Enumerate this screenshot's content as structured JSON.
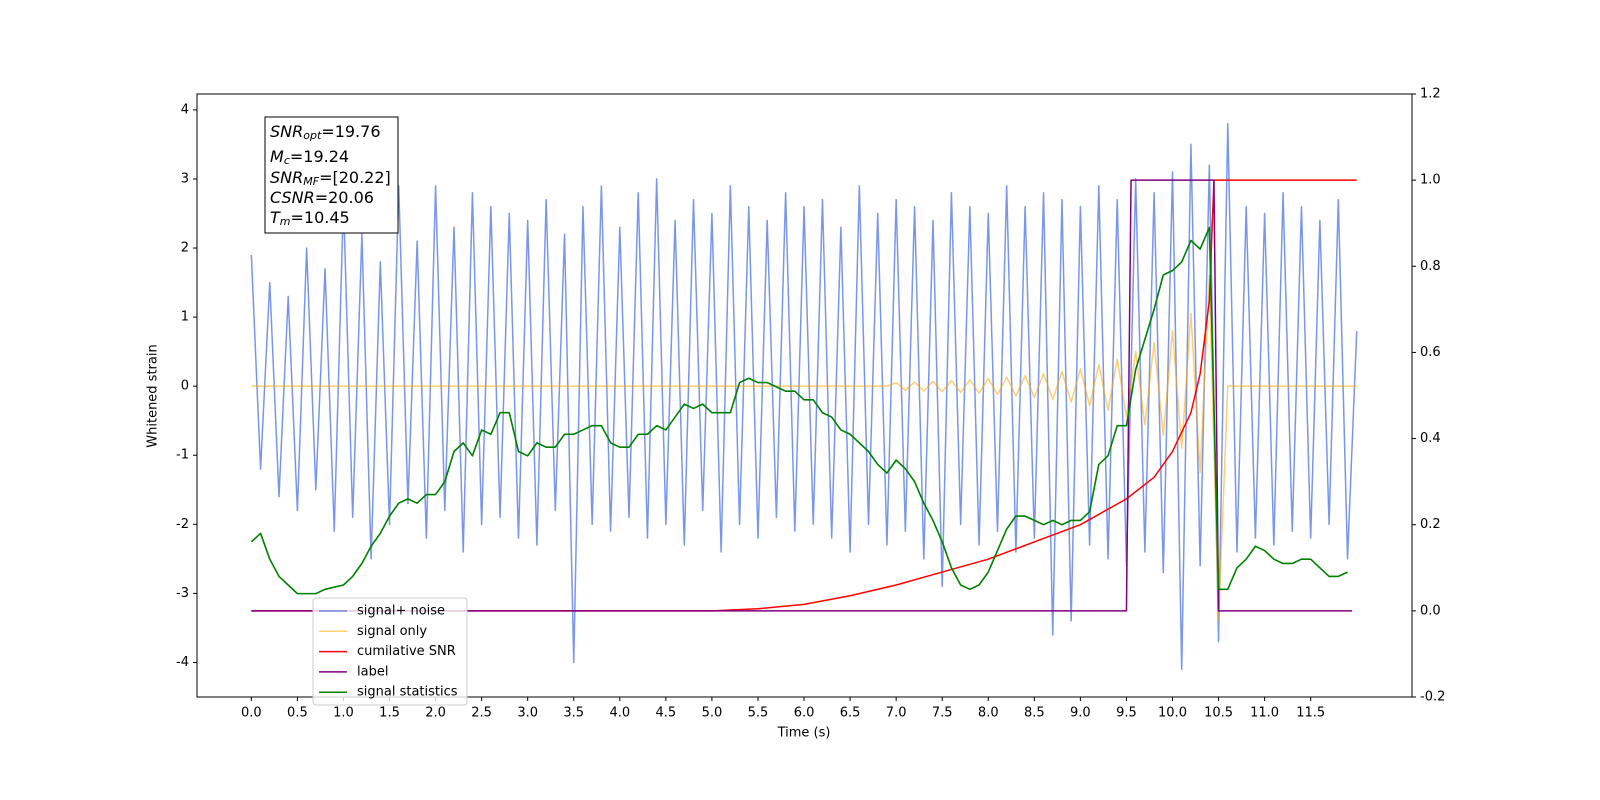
{
  "chart_data": {
    "type": "line",
    "xlabel": "Time (s)",
    "ylabel": "Whitened strain",
    "xlim": [
      -0.59,
      12.6
    ],
    "ylim": [
      -4.5,
      4.23
    ],
    "y2lim": [
      -0.2,
      1.2
    ],
    "xticks": [
      {
        "value": 0,
        "label": "0.0"
      },
      0.5,
      {
        "value": 1,
        "label": "1.0"
      },
      1.5,
      {
        "value": 2,
        "label": "2.0"
      },
      2.5,
      {
        "value": 3,
        "label": "3.0"
      },
      3.5,
      {
        "value": 4,
        "label": "4.0"
      },
      4.5,
      {
        "value": 5,
        "label": "5.0"
      },
      5.5,
      {
        "value": 6,
        "label": "6.0"
      },
      6.5,
      {
        "value": 7,
        "label": "7.0"
      },
      7.5,
      {
        "value": 8,
        "label": "8.0"
      },
      8.5,
      {
        "value": 9,
        "label": "9.0"
      },
      9.5,
      {
        "value": 10,
        "label": "10.0"
      },
      10.5,
      {
        "value": 11,
        "label": "11.0"
      },
      11.5
    ],
    "yticks": [
      -4,
      -3,
      -2,
      -1,
      0,
      1,
      2,
      3,
      4
    ],
    "y2ticks": [
      -0.2,
      {
        "value": 0,
        "label": "0.0"
      },
      0.2,
      0.4,
      0.6,
      0.8,
      {
        "value": 1,
        "label": "1.0"
      },
      1.2
    ],
    "legend": "lower left",
    "annotation": [
      {
        "main": "SNR",
        "sub": "opt",
        "rest": "=19.76"
      },
      {
        "main": "M",
        "sub": "c",
        "rest": "=19.24"
      },
      {
        "main": "SNR",
        "sub": "MF",
        "rest": "=[20.22]"
      },
      {
        "main": "CSNR",
        "sub": null,
        "rest": "=20.06"
      },
      {
        "main": "T",
        "sub": "m",
        "rest": "=10.45"
      }
    ],
    "x": [
      0,
      0.1,
      0.2,
      0.3,
      0.4,
      0.5,
      0.6,
      0.7,
      0.8,
      0.9,
      1,
      1.1,
      1.2,
      1.3,
      1.4,
      1.5,
      1.6,
      1.7,
      1.8,
      1.9,
      2,
      2.1,
      2.2,
      2.3,
      2.4,
      2.5,
      2.6,
      2.7,
      2.8,
      2.9,
      3,
      3.1,
      3.2,
      3.3,
      3.4,
      3.5,
      3.6,
      3.7,
      3.8,
      3.9,
      4,
      4.1,
      4.2,
      4.3,
      4.4,
      4.5,
      4.6,
      4.7,
      4.8,
      4.9,
      5,
      5.1,
      5.2,
      5.3,
      5.4,
      5.5,
      5.6,
      5.7,
      5.8,
      5.9,
      6,
      6.1,
      6.2,
      6.3,
      6.4,
      6.5,
      6.6,
      6.7,
      6.8,
      6.9,
      7,
      7.1,
      7.2,
      7.3,
      7.4,
      7.5,
      7.6,
      7.7,
      7.8,
      7.9,
      8,
      8.1,
      8.2,
      8.3,
      8.4,
      8.5,
      8.6,
      8.7,
      8.8,
      8.9,
      9,
      9.1,
      9.2,
      9.3,
      9.4,
      9.5,
      9.6,
      9.7,
      9.8,
      9.9,
      10,
      10.1,
      10.2,
      10.3,
      10.4,
      10.5,
      10.6,
      10.7,
      10.8,
      10.9,
      11,
      11.1,
      11.2,
      11.3,
      11.4,
      11.5,
      11.6,
      11.7,
      11.8,
      11.9,
      12
    ],
    "series": [
      {
        "name": "signal+ noise",
        "color": "#4169e1",
        "values": [
          1.9,
          -1.2,
          1.5,
          -1.6,
          1.3,
          -1.8,
          2.0,
          -1.5,
          1.7,
          -2.1,
          2.7,
          -1.9,
          2.2,
          -2.5,
          1.8,
          -2.0,
          2.9,
          -1.7,
          2.1,
          -2.2,
          2.9,
          -1.8,
          2.3,
          -2.4,
          2.8,
          -2.0,
          2.6,
          -1.9,
          2.5,
          -2.2,
          2.4,
          -2.3,
          2.7,
          -1.8,
          2.2,
          -4.0,
          2.6,
          -2.0,
          2.9,
          -2.1,
          2.3,
          -1.9,
          2.8,
          -2.2,
          3.0,
          -2.0,
          2.4,
          -2.3,
          2.7,
          -1.8,
          2.5,
          -2.4,
          2.9,
          -2.0,
          2.6,
          -2.2,
          2.4,
          -1.9,
          2.8,
          -2.1,
          2.6,
          -2.0,
          2.7,
          -2.2,
          2.3,
          -2.4,
          2.9,
          -2.0,
          2.5,
          -2.3,
          2.7,
          -2.1,
          2.6,
          -2.5,
          2.4,
          -2.9,
          2.8,
          -2.0,
          2.6,
          -2.3,
          2.5,
          -2.1,
          2.9,
          -2.4,
          2.6,
          -2.2,
          2.8,
          -3.6,
          2.7,
          -3.4,
          2.6,
          -2.3,
          2.9,
          -2.5,
          2.7,
          -2.6,
          3.0,
          -2.4,
          2.8,
          -2.7,
          3.1,
          -4.1,
          3.5,
          -2.6,
          3.2,
          -3.7,
          3.8,
          -2.4,
          2.6,
          -2.2,
          2.5,
          -2.3,
          2.8,
          -2.1,
          2.6,
          -2.2,
          2.4,
          -2.0,
          2.7,
          -2.5,
          0.8
        ]
      },
      {
        "name": "signal only",
        "color": "#ffa500",
        "values": [
          0,
          0,
          0,
          0,
          0,
          0,
          0,
          0,
          0,
          0,
          0,
          0,
          0,
          0,
          0,
          0,
          0,
          0,
          0,
          0,
          0,
          0,
          0,
          0,
          0,
          0,
          0,
          0,
          0,
          0,
          0,
          0,
          0,
          0,
          0,
          0,
          0,
          0,
          0,
          0,
          0,
          0,
          0,
          0,
          0,
          0,
          0,
          0,
          0,
          0,
          0,
          0,
          0,
          0,
          0,
          0,
          0,
          0,
          0,
          0,
          0,
          0,
          0,
          0,
          0,
          0,
          0,
          0,
          0,
          0,
          0.05,
          -0.06,
          0.06,
          -0.07,
          0.07,
          -0.08,
          0.08,
          -0.09,
          0.09,
          -0.1,
          0.11,
          -0.12,
          0.13,
          -0.14,
          0.15,
          -0.16,
          0.18,
          -0.19,
          0.21,
          -0.23,
          0.25,
          -0.28,
          0.31,
          -0.35,
          0.39,
          -0.44,
          0.5,
          -0.56,
          0.63,
          -0.71,
          0.8,
          -0.9,
          1.05,
          -1.25,
          1.6,
          -3.4,
          0,
          0,
          0,
          0,
          0,
          0,
          0,
          0,
          0,
          0,
          0,
          0,
          0,
          0,
          0
        ]
      },
      {
        "name": "cumilative SNR",
        "color": "#ff0000",
        "axis": "y2",
        "x": [
          0,
          5,
          5.5,
          6,
          6.5,
          7,
          7.5,
          8,
          8.5,
          9,
          9.5,
          9.8,
          10,
          10.2,
          10.3,
          10.4,
          10.45,
          12
        ],
        "values": [
          0,
          0,
          0.005,
          0.015,
          0.035,
          0.06,
          0.09,
          0.12,
          0.16,
          0.2,
          0.26,
          0.31,
          0.37,
          0.46,
          0.55,
          0.72,
          1.0,
          1.0
        ]
      },
      {
        "name": "label",
        "color": "#800080",
        "axis": "y2",
        "x": [
          0,
          9.5,
          9.55,
          10.45,
          10.5,
          11.95
        ],
        "values": [
          0,
          0,
          1,
          1,
          0,
          0
        ]
      },
      {
        "name": "signal statistics",
        "color": "#008000",
        "axis": "y2",
        "x": [
          0,
          0.1,
          0.2,
          0.3,
          0.4,
          0.5,
          0.6,
          0.7,
          0.8,
          0.9,
          1,
          1.1,
          1.2,
          1.3,
          1.4,
          1.5,
          1.6,
          1.7,
          1.8,
          1.9,
          2,
          2.1,
          2.2,
          2.3,
          2.4,
          2.5,
          2.6,
          2.7,
          2.8,
          2.9,
          3,
          3.1,
          3.2,
          3.3,
          3.4,
          3.5,
          3.6,
          3.7,
          3.8,
          3.9,
          4,
          4.1,
          4.2,
          4.3,
          4.4,
          4.5,
          4.6,
          4.7,
          4.8,
          4.9,
          5,
          5.1,
          5.2,
          5.3,
          5.4,
          5.5,
          5.6,
          5.7,
          5.8,
          5.9,
          6,
          6.1,
          6.2,
          6.3,
          6.4,
          6.5,
          6.6,
          6.7,
          6.8,
          6.9,
          7,
          7.1,
          7.2,
          7.3,
          7.4,
          7.5,
          7.6,
          7.7,
          7.8,
          7.9,
          8,
          8.1,
          8.2,
          8.3,
          8.4,
          8.5,
          8.6,
          8.7,
          8.8,
          8.9,
          9,
          9.1,
          9.2,
          9.3,
          9.4,
          9.5,
          9.6,
          9.7,
          9.8,
          9.9,
          10,
          10.1,
          10.2,
          10.3,
          10.4,
          10.5,
          10.6,
          10.7,
          10.8,
          10.9,
          11,
          11.1,
          11.2,
          11.3,
          11.4,
          11.5,
          11.6,
          11.7,
          11.8,
          11.9
        ],
        "values": [
          0.16,
          0.18,
          0.12,
          0.08,
          0.06,
          0.04,
          0.04,
          0.04,
          0.05,
          0.055,
          0.06,
          0.08,
          0.11,
          0.15,
          0.18,
          0.22,
          0.25,
          0.26,
          0.25,
          0.27,
          0.27,
          0.3,
          0.37,
          0.39,
          0.36,
          0.42,
          0.41,
          0.46,
          0.46,
          0.37,
          0.36,
          0.39,
          0.38,
          0.38,
          0.41,
          0.41,
          0.42,
          0.43,
          0.43,
          0.39,
          0.38,
          0.38,
          0.41,
          0.41,
          0.43,
          0.42,
          0.45,
          0.48,
          0.47,
          0.48,
          0.46,
          0.46,
          0.46,
          0.53,
          0.54,
          0.53,
          0.53,
          0.52,
          0.51,
          0.51,
          0.49,
          0.49,
          0.46,
          0.45,
          0.42,
          0.41,
          0.39,
          0.37,
          0.34,
          0.32,
          0.35,
          0.33,
          0.3,
          0.25,
          0.21,
          0.16,
          0.1,
          0.06,
          0.05,
          0.06,
          0.09,
          0.14,
          0.19,
          0.22,
          0.22,
          0.21,
          0.2,
          0.21,
          0.2,
          0.21,
          0.21,
          0.23,
          0.34,
          0.36,
          0.43,
          0.43,
          0.56,
          0.63,
          0.7,
          0.78,
          0.79,
          0.81,
          0.86,
          0.84,
          0.89,
          0.05,
          0.05,
          0.1,
          0.12,
          0.15,
          0.14,
          0.12,
          0.11,
          0.11,
          0.12,
          0.12,
          0.1,
          0.08,
          0.08,
          0.09
        ]
      }
    ]
  }
}
